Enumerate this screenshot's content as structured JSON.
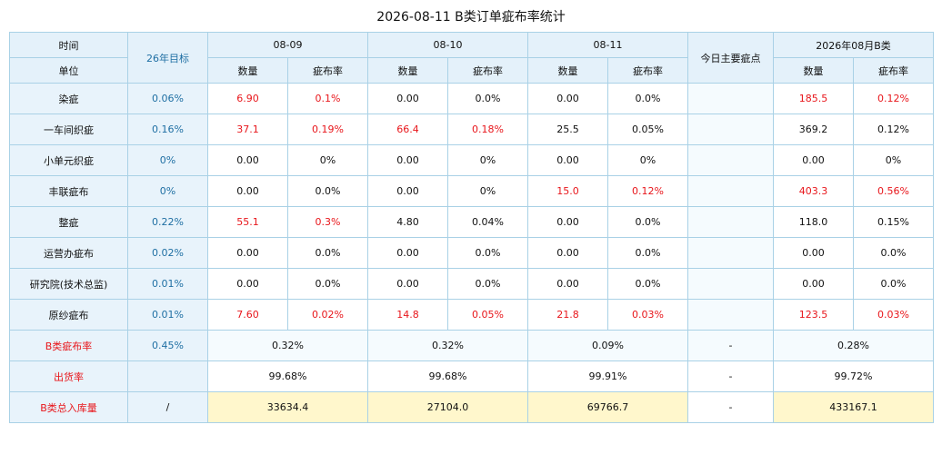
{
  "title": "2026-08-11 B类订单疵布率统计",
  "header": {
    "time_label": "时间",
    "unit_label": "单位",
    "target_label": "26年目标",
    "dates": [
      "08-09",
      "08-10",
      "08-11"
    ],
    "qty_label": "数量",
    "rate_label": "疵布率",
    "main_defect_label": "今日主要疵点",
    "month_label": "2026年08月B类"
  },
  "rows": [
    {
      "name": "染疵",
      "target": "0.06%",
      "d1q": "6.90",
      "d1r": "0.1%",
      "d2q": "0.00",
      "d2r": "0.0%",
      "d3q": "0.00",
      "d3r": "0.0%",
      "main": "",
      "mq": "185.5",
      "mr": "0.12%",
      "red": {
        "d1q": true,
        "d1r": true,
        "d2q": false,
        "d2r": false,
        "d3q": false,
        "d3r": false,
        "mq": true,
        "mr": true
      }
    },
    {
      "name": "一车间织疵",
      "target": "0.16%",
      "d1q": "37.1",
      "d1r": "0.19%",
      "d2q": "66.4",
      "d2r": "0.18%",
      "d3q": "25.5",
      "d3r": "0.05%",
      "main": "",
      "mq": "369.2",
      "mr": "0.12%",
      "red": {
        "d1q": true,
        "d1r": true,
        "d2q": true,
        "d2r": true,
        "d3q": false,
        "d3r": false,
        "mq": false,
        "mr": false
      }
    },
    {
      "name": "小单元织疵",
      "target": "0%",
      "d1q": "0.00",
      "d1r": "0%",
      "d2q": "0.00",
      "d2r": "0%",
      "d3q": "0.00",
      "d3r": "0%",
      "main": "",
      "mq": "0.00",
      "mr": "0%",
      "red": {
        "d1q": false,
        "d1r": false,
        "d2q": false,
        "d2r": false,
        "d3q": false,
        "d3r": false,
        "mq": false,
        "mr": false
      }
    },
    {
      "name": "丰联疵布",
      "target": "0%",
      "d1q": "0.00",
      "d1r": "0.0%",
      "d2q": "0.00",
      "d2r": "0%",
      "d3q": "15.0",
      "d3r": "0.12%",
      "main": "",
      "mq": "403.3",
      "mr": "0.56%",
      "red": {
        "d1q": false,
        "d1r": false,
        "d2q": false,
        "d2r": false,
        "d3q": true,
        "d3r": true,
        "mq": true,
        "mr": true
      }
    },
    {
      "name": "整疵",
      "target": "0.22%",
      "d1q": "55.1",
      "d1r": "0.3%",
      "d2q": "4.80",
      "d2r": "0.04%",
      "d3q": "0.00",
      "d3r": "0.0%",
      "main": "",
      "mq": "118.0",
      "mr": "0.15%",
      "red": {
        "d1q": true,
        "d1r": true,
        "d2q": false,
        "d2r": false,
        "d3q": false,
        "d3r": false,
        "mq": false,
        "mr": false
      }
    },
    {
      "name": "运营办疵布",
      "target": "0.02%",
      "d1q": "0.00",
      "d1r": "0.0%",
      "d2q": "0.00",
      "d2r": "0.0%",
      "d3q": "0.00",
      "d3r": "0.0%",
      "main": "",
      "mq": "0.00",
      "mr": "0.0%",
      "red": {
        "d1q": false,
        "d1r": false,
        "d2q": false,
        "d2r": false,
        "d3q": false,
        "d3r": false,
        "mq": false,
        "mr": false
      }
    },
    {
      "name": "研究院(技术总监)",
      "target": "0.01%",
      "d1q": "0.00",
      "d1r": "0.0%",
      "d2q": "0.00",
      "d2r": "0.0%",
      "d3q": "0.00",
      "d3r": "0.0%",
      "main": "",
      "mq": "0.00",
      "mr": "0.0%",
      "red": {
        "d1q": false,
        "d1r": false,
        "d2q": false,
        "d2r": false,
        "d3q": false,
        "d3r": false,
        "mq": false,
        "mr": false
      }
    },
    {
      "name": "原纱疵布",
      "target": "0.01%",
      "d1q": "7.60",
      "d1r": "0.02%",
      "d2q": "14.8",
      "d2r": "0.05%",
      "d3q": "21.8",
      "d3r": "0.03%",
      "main": "",
      "mq": "123.5",
      "mr": "0.03%",
      "red": {
        "d1q": true,
        "d1r": true,
        "d2q": true,
        "d2r": true,
        "d3q": true,
        "d3r": true,
        "mq": true,
        "mr": true
      }
    }
  ],
  "summary": {
    "rate": {
      "name": "B类疵布率",
      "target": "0.45%",
      "d1": "0.32%",
      "d2": "0.32%",
      "d3": "0.09%",
      "main": "-",
      "month": "0.28%"
    },
    "ship": {
      "name": "出货率",
      "target": "",
      "d1": "99.68%",
      "d2": "99.68%",
      "d3": "99.91%",
      "main": "-",
      "month": "99.72%"
    },
    "stock": {
      "name": "B类总入库量",
      "target": "/",
      "d1": "33634.4",
      "d2": "27104.0",
      "d3": "69766.7",
      "main": "-",
      "month": "433167.1"
    }
  },
  "colors": {
    "accent_red": "#e8161b",
    "header_bg": "#e4f1fa",
    "border": "#a9d1e6",
    "highlight_row": "#fff7cc",
    "target_text": "#1f6fa3"
  }
}
